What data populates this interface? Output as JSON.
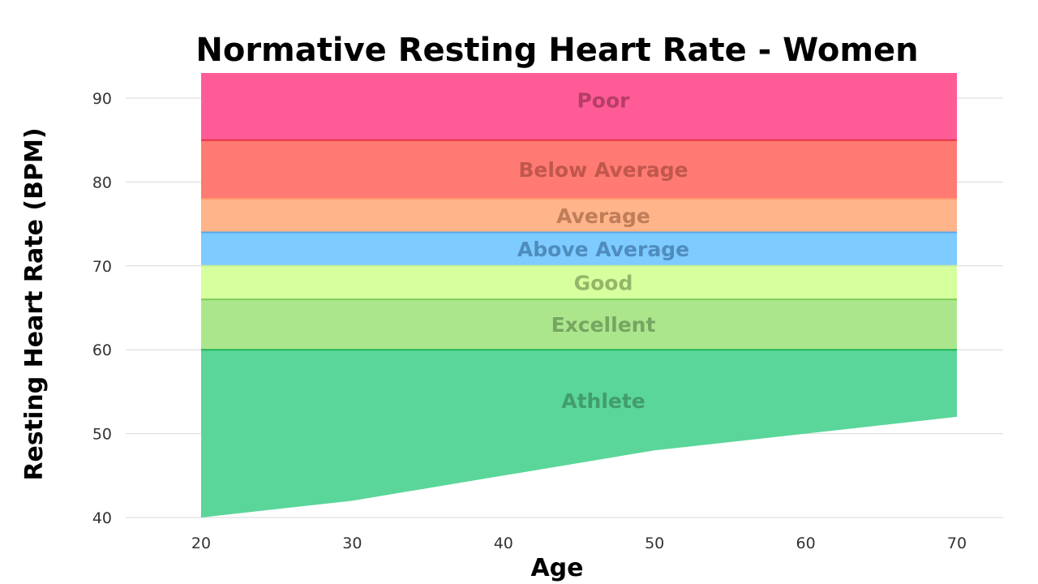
{
  "chart_data": {
    "type": "area",
    "title": "Normative Resting Heart Rate - Women",
    "xlabel": "Age",
    "ylabel": "Resting Heart Rate (BPM)",
    "xlim": [
      20,
      70
    ],
    "ylim": [
      40,
      93
    ],
    "x_ticks": [
      20,
      30,
      40,
      50,
      60,
      70
    ],
    "y_ticks": [
      40,
      50,
      60,
      70,
      80,
      90
    ],
    "grid": true,
    "bands": [
      {
        "name": "Poor",
        "lower": 85,
        "upper": 93,
        "color": "#ff5c97",
        "line_color": "#e8334a",
        "text_color": "#7a2440"
      },
      {
        "name": "Below Average",
        "lower": 78,
        "upper": 85,
        "color": "#ff7a72",
        "line_color": "#ff9a70",
        "text_color": "#8c3a30"
      },
      {
        "name": "Average",
        "lower": 74,
        "upper": 78,
        "color": "#ffb48a",
        "line_color": "#5aa7e8",
        "text_color": "#8a5030"
      },
      {
        "name": "Above Average",
        "lower": 70,
        "upper": 74,
        "color": "#7dcbff",
        "line_color": "#c7ee98",
        "text_color": "#2a5a88"
      },
      {
        "name": "Good",
        "lower": 66,
        "upper": 70,
        "color": "#d6ff9e",
        "line_color": "#7ccf5a",
        "text_color": "#5d7a3c"
      },
      {
        "name": "Excellent",
        "lower": 60,
        "upper": 66,
        "color": "#ace68c",
        "line_color": "#22b35a",
        "text_color": "#4a7040"
      },
      {
        "name": "Athlete",
        "lower_curve": {
          "x": [
            20,
            30,
            40,
            50,
            60,
            70
          ],
          "y": [
            40,
            42,
            45,
            48,
            50,
            52
          ]
        },
        "upper": 60,
        "color": "#5ad69a",
        "text_color": "#2f6e4a"
      }
    ]
  }
}
